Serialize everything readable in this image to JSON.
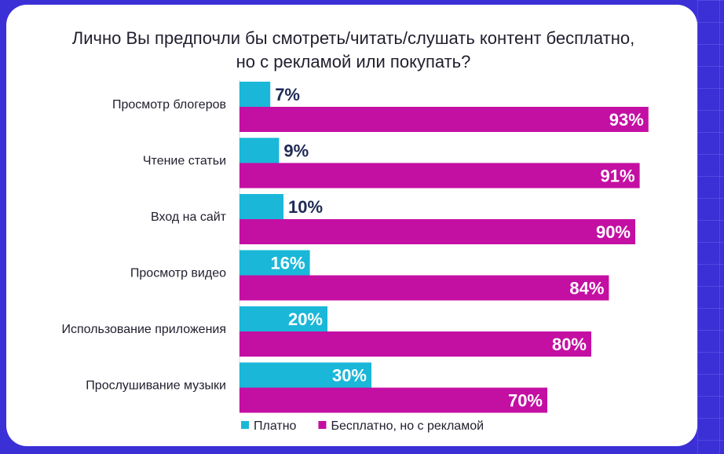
{
  "chart_data": {
    "type": "bar",
    "orientation": "horizontal",
    "title_lines": [
      "Лично Вы предпочли бы смотреть/читать/слушать контент бесплатно,",
      "но с рекламой или покупать?"
    ],
    "categories": [
      "Просмотр блогеров",
      "Чтение статьи",
      "Вход на сайт",
      "Просмотр видео",
      "Использование приложения",
      "Прослушивание музыки"
    ],
    "series": [
      {
        "name": "Платно",
        "color": "#1ab7d9",
        "values": [
          7,
          9,
          10,
          16,
          20,
          30
        ]
      },
      {
        "name": "Бесплатно, но с рекламой",
        "color": "#c40fa3",
        "values": [
          93,
          91,
          90,
          84,
          80,
          70
        ]
      }
    ],
    "xlim": [
      0,
      100
    ],
    "value_suffix": "%",
    "legend_position": "bottom-left",
    "grid": false,
    "small_value_label_color": "#1f2a55"
  }
}
